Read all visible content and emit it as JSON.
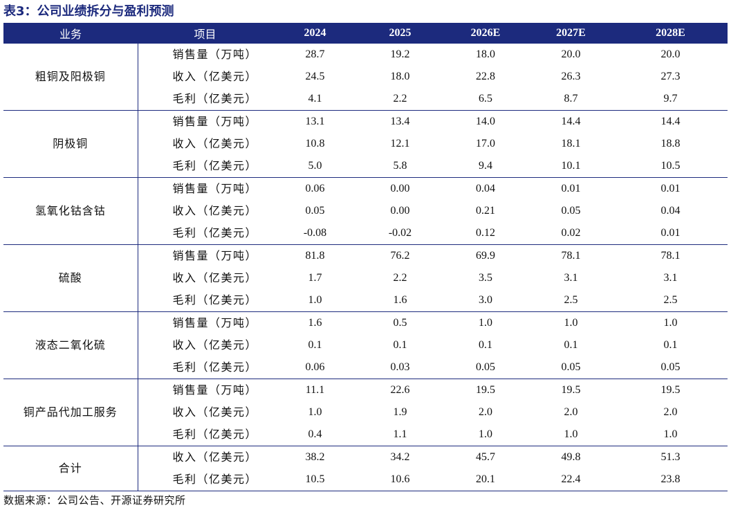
{
  "title": "表3：公司业绩拆分与盈利预测",
  "headers": [
    "业务",
    "项目",
    "2024",
    "2025",
    "2026E",
    "2027E",
    "2028E"
  ],
  "groups": [
    {
      "segment": "粗铜及阳极铜",
      "rows": [
        {
          "item": "销售量（万吨）",
          "values": [
            "28.7",
            "19.2",
            "18.0",
            "20.0",
            "20.0"
          ]
        },
        {
          "item": "收入（亿美元）",
          "values": [
            "24.5",
            "18.0",
            "22.8",
            "26.3",
            "27.3"
          ]
        },
        {
          "item": "毛利（亿美元）",
          "values": [
            "4.1",
            "2.2",
            "6.5",
            "8.7",
            "9.7"
          ]
        }
      ]
    },
    {
      "segment": "阴极铜",
      "rows": [
        {
          "item": "销售量（万吨）",
          "values": [
            "13.1",
            "13.4",
            "14.0",
            "14.4",
            "14.4"
          ]
        },
        {
          "item": "收入（亿美元）",
          "values": [
            "10.8",
            "12.1",
            "17.0",
            "18.1",
            "18.8"
          ]
        },
        {
          "item": "毛利（亿美元）",
          "values": [
            "5.0",
            "5.8",
            "9.4",
            "10.1",
            "10.5"
          ]
        }
      ]
    },
    {
      "segment": "氢氧化钴含钴",
      "rows": [
        {
          "item": "销售量（万吨）",
          "values": [
            "0.06",
            "0.00",
            "0.04",
            "0.01",
            "0.01"
          ]
        },
        {
          "item": "收入（亿美元）",
          "values": [
            "0.05",
            "0.00",
            "0.21",
            "0.05",
            "0.04"
          ]
        },
        {
          "item": "毛利（亿美元）",
          "values": [
            "-0.08",
            "-0.02",
            "0.12",
            "0.02",
            "0.01"
          ]
        }
      ]
    },
    {
      "segment": "硫酸",
      "rows": [
        {
          "item": "销售量（万吨）",
          "values": [
            "81.8",
            "76.2",
            "69.9",
            "78.1",
            "78.1"
          ]
        },
        {
          "item": "收入（亿美元）",
          "values": [
            "1.7",
            "2.2",
            "3.5",
            "3.1",
            "3.1"
          ]
        },
        {
          "item": "毛利（亿美元）",
          "values": [
            "1.0",
            "1.6",
            "3.0",
            "2.5",
            "2.5"
          ]
        }
      ]
    },
    {
      "segment": "液态二氧化硫",
      "rows": [
        {
          "item": "销售量（万吨）",
          "values": [
            "1.6",
            "0.5",
            "1.0",
            "1.0",
            "1.0"
          ]
        },
        {
          "item": "收入（亿美元）",
          "values": [
            "0.1",
            "0.1",
            "0.1",
            "0.1",
            "0.1"
          ]
        },
        {
          "item": "毛利（亿美元）",
          "values": [
            "0.06",
            "0.03",
            "0.05",
            "0.05",
            "0.05"
          ]
        }
      ]
    },
    {
      "segment": "铜产品代加工服务",
      "rows": [
        {
          "item": "销售量（万吨）",
          "values": [
            "11.1",
            "22.6",
            "19.5",
            "19.5",
            "19.5"
          ]
        },
        {
          "item": "收入（亿美元）",
          "values": [
            "1.0",
            "1.9",
            "2.0",
            "2.0",
            "2.0"
          ]
        },
        {
          "item": "毛利（亿美元）",
          "values": [
            "0.4",
            "1.1",
            "1.0",
            "1.0",
            "1.0"
          ]
        }
      ]
    },
    {
      "segment": "合计",
      "rows": [
        {
          "item": "收入（亿美元）",
          "values": [
            "38.2",
            "34.2",
            "45.7",
            "49.8",
            "51.3"
          ]
        },
        {
          "item": "毛利（亿美元）",
          "values": [
            "10.5",
            "10.6",
            "20.1",
            "22.4",
            "23.8"
          ]
        }
      ]
    }
  ],
  "source": "数据来源：公司公告、开源证券研究所",
  "colors": {
    "header_bg": "#1c2a7d",
    "header_text": "#ffffff",
    "title": "#1c2a7d"
  }
}
